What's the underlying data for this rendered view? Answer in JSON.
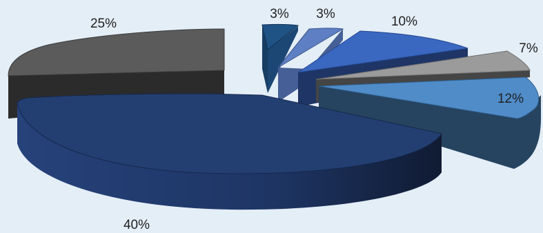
{
  "chart_data": {
    "type": "pie",
    "style": "3d-exploded",
    "title": "",
    "slices": [
      {
        "value": 25,
        "label": "25%",
        "color": "#5b5b5b",
        "side": "#2a2a2a"
      },
      {
        "value": 3,
        "label": "3%",
        "color": "#1f5285",
        "side": "#173d63"
      },
      {
        "value": 3,
        "label": "3%",
        "color": "#5f7fc4",
        "side": "#465f96"
      },
      {
        "value": 10,
        "label": "10%",
        "color": "#3a67c0",
        "side": "#1e3566"
      },
      {
        "value": 7,
        "label": "7%",
        "color": "#9b9b9b",
        "side": "#454545"
      },
      {
        "value": 12,
        "label": "12%",
        "color": "#4f8cc8",
        "side": "#26435f"
      },
      {
        "value": 40,
        "label": "40%",
        "color": "#233f72",
        "side": "#1b3060"
      }
    ]
  }
}
